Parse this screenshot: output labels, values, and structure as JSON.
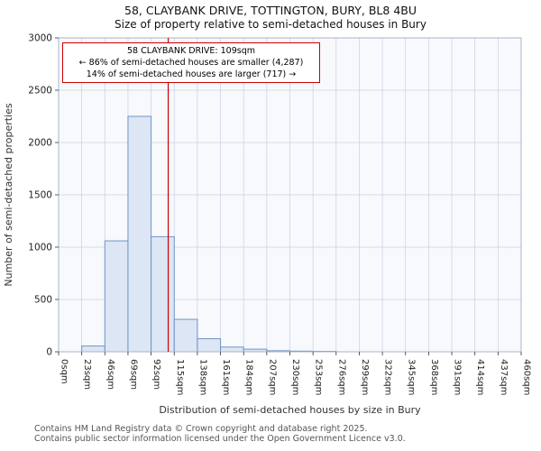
{
  "title": {
    "line1": "58, CLAYBANK DRIVE, TOTTINGTON, BURY, BL8 4BU",
    "line2": "Size of property relative to semi-detached houses in Bury"
  },
  "chart_data": {
    "type": "bar",
    "title": "58, CLAYBANK DRIVE, TOTTINGTON, BURY, BL8 4BU — Size of property relative to semi-detached houses in Bury",
    "categories": [
      "0sqm",
      "23sqm",
      "46sqm",
      "69sqm",
      "92sqm",
      "115sqm",
      "138sqm",
      "161sqm",
      "184sqm",
      "207sqm",
      "230sqm",
      "253sqm",
      "276sqm",
      "299sqm",
      "322sqm",
      "345sqm",
      "368sqm",
      "391sqm",
      "414sqm",
      "437sqm",
      "460sqm"
    ],
    "values": [
      0,
      55,
      1060,
      2250,
      1100,
      310,
      125,
      45,
      25,
      10,
      6,
      4,
      0,
      0,
      0,
      0,
      0,
      0,
      0,
      0
    ],
    "bin_width_sqm": 23,
    "x_max_sqm": 460,
    "xlabel": "Distribution of semi-detached houses by size in Bury",
    "ylabel": "Number of semi-detached properties",
    "ylim": [
      0,
      3000
    ],
    "yticks": [
      0,
      500,
      1000,
      1500,
      2000,
      2500,
      3000
    ],
    "grid": true,
    "legend": "none",
    "marker": {
      "value_sqm": 109,
      "color": "#cc0000"
    },
    "annotation": {
      "line1": "58 CLAYBANK DRIVE: 109sqm",
      "line2": "← 86% of semi-detached houses are smaller (4,287)",
      "line3": "14% of semi-detached houses are larger (717) →"
    },
    "colors": {
      "bar_fill": "#dce6f4",
      "bar_stroke": "#7094c4",
      "grid": "#c8d0e0",
      "plot_bg": "#f7f9fd",
      "plot_border": "#aab4c8",
      "marker_line": "#cc0000"
    }
  },
  "footer": {
    "line1": "Contains HM Land Registry data © Crown copyright and database right 2025.",
    "line2": "Contains public sector information licensed under the Open Government Licence v3.0."
  }
}
